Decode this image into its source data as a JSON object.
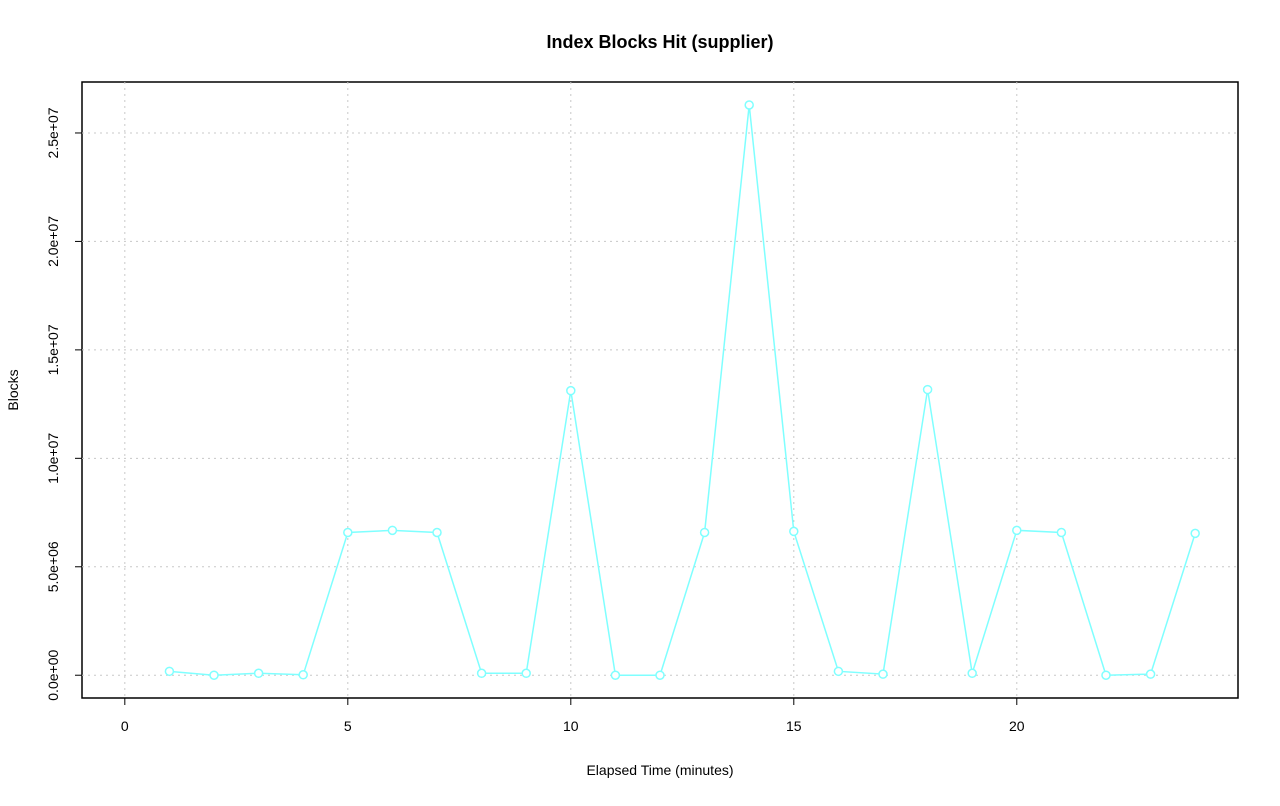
{
  "chart_data": {
    "type": "line",
    "title": "Index Blocks Hit (supplier)",
    "x_label": "Elapsed Time (minutes)",
    "y_label": "Blocks",
    "x": [
      1,
      2,
      3,
      4,
      5,
      6,
      7,
      8,
      9,
      10,
      11,
      12,
      13,
      14,
      15,
      16,
      17,
      18,
      19,
      20,
      21,
      22,
      23,
      24
    ],
    "series": [
      {
        "name": "supplier",
        "color": "#7fffff",
        "values": [
          180000,
          0,
          90000,
          20000,
          6580000,
          6680000,
          6580000,
          90000,
          90000,
          13120000,
          0,
          0,
          6580000,
          26290000,
          6630000,
          180000,
          50000,
          13170000,
          90000,
          6680000,
          6580000,
          0,
          50000,
          6540000
        ]
      }
    ],
    "xlim": [
      -0.96,
      24.96
    ],
    "xticks": [
      0,
      5,
      10,
      15,
      20
    ],
    "ylim": [
      -1050000,
      27350000
    ],
    "yticks": [
      {
        "value": 0,
        "label": "0.0e+00"
      },
      {
        "value": 5000000,
        "label": "5.0e+06"
      },
      {
        "value": 10000000,
        "label": "1.0e+07"
      },
      {
        "value": 15000000,
        "label": "1.5e+07"
      },
      {
        "value": 20000000,
        "label": "2.0e+07"
      },
      {
        "value": 25000000,
        "label": "2.5e+07"
      }
    ],
    "grid": true
  }
}
